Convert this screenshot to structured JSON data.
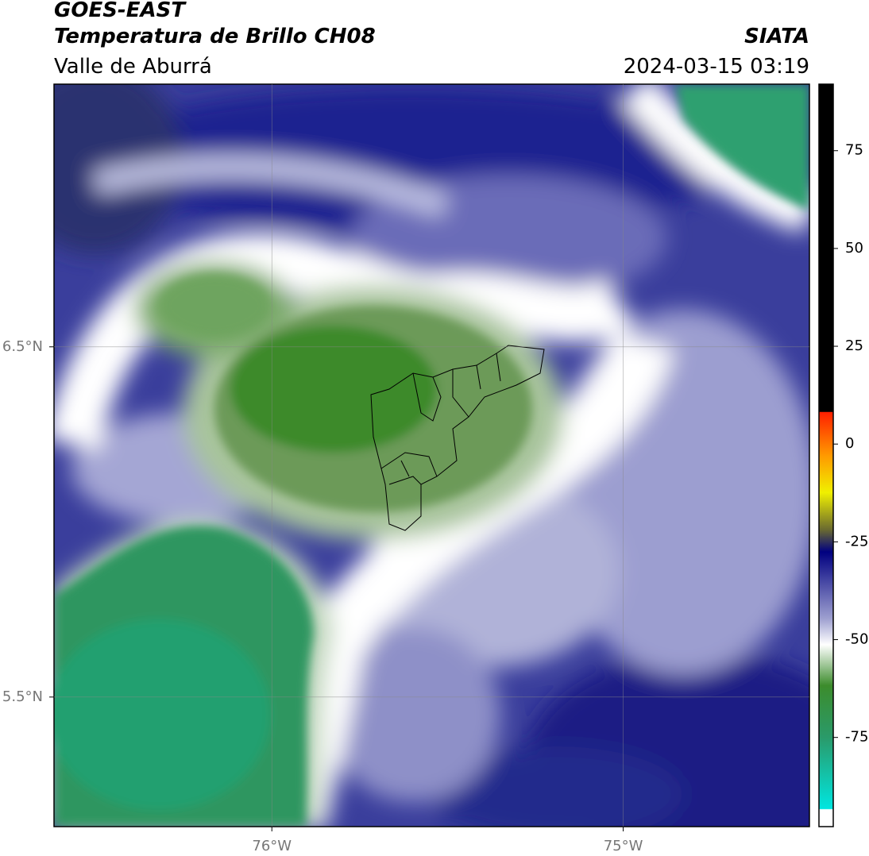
{
  "header": {
    "title": "GOES-EAST",
    "subtitle": "Temperatura de Brillo CH08",
    "region": "Valle de Aburrá",
    "source": "SIATA",
    "datetime": "2024-03-15 03:19"
  },
  "map": {
    "xlim": [
      -76.62,
      -74.47
    ],
    "ylim": [
      5.13,
      7.25
    ],
    "xticks": [
      {
        "value": -76,
        "label": "76°W"
      },
      {
        "value": -75,
        "label": "75°W"
      }
    ],
    "yticks": [
      {
        "value": 5.5,
        "label": "5.5°N"
      },
      {
        "value": 6.5,
        "label": "6.5°N"
      }
    ]
  },
  "colorbar": {
    "lim": [
      -97.8,
      92
    ],
    "ticks": [
      -75,
      -50,
      -25,
      0,
      25,
      50,
      75
    ]
  }
}
